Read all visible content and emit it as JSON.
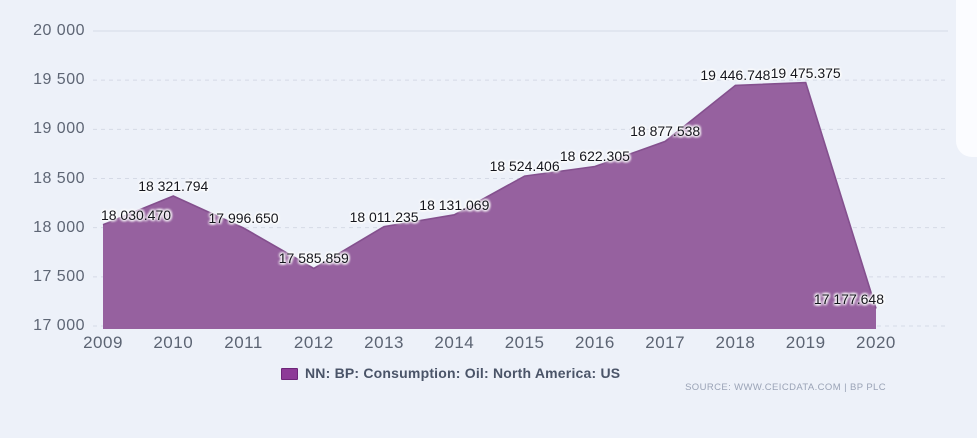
{
  "legend": {
    "label": "NN: BP: Consumption: Oil: North America: US"
  },
  "source": {
    "text": "SOURCE: WWW.CEICDATA.COM | BP PLC"
  },
  "chart_data": {
    "type": "area",
    "title": "",
    "xlabel": "",
    "ylabel": "",
    "series_name": "NN: BP: Consumption: Oil: North America: US",
    "categories": [
      "2009",
      "2010",
      "2011",
      "2012",
      "2013",
      "2014",
      "2015",
      "2016",
      "2017",
      "2018",
      "2019",
      "2020"
    ],
    "values": [
      18030.47,
      18321.794,
      17996.65,
      17585.859,
      18011.235,
      18131.069,
      18524.406,
      18622.305,
      18877.538,
      19446.748,
      19475.375,
      17177.648
    ],
    "value_labels": [
      "18 030.470",
      "18 321.794",
      "17 996.650",
      "17 585.859",
      "18 011.235",
      "18 131.069",
      "18 524.406",
      "18 622.305",
      "18 877.538",
      "19 446.748",
      "19 475.375",
      "17 177.648"
    ],
    "ylim": [
      17000,
      20000
    ],
    "y_tick_values": [
      20000,
      19500,
      19000,
      18500,
      18000,
      17500,
      17000
    ],
    "y_tick_labels": [
      "20 000",
      "19 500",
      "19 000",
      "18 500",
      "18 000",
      "17 500",
      "17 000"
    ],
    "grid": "horizontal-dashed",
    "legend_position": "bottom",
    "colors": {
      "background": "#edf1f9",
      "area_fill": "#96619f",
      "area_stroke": "#84508e",
      "legend_marker": "#8d3a97",
      "legend_marker_border": "#6e2579",
      "grid_line": "#d5dae6",
      "axis_text": "#5e6675",
      "value_text": "#15161d",
      "legend_text": "#4a5468",
      "source_text": "#9aa3b6"
    }
  }
}
